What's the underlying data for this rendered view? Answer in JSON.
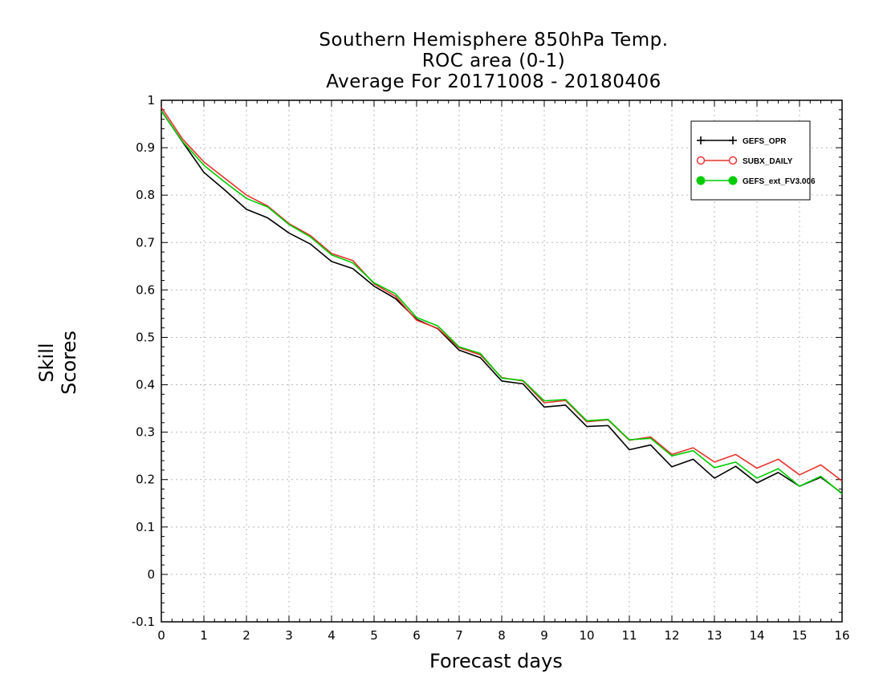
{
  "chart_data": {
    "type": "line",
    "title": [
      "Southern Hemisphere 850hPa Temp.",
      "ROC area (0-1)",
      "Average For 20171008 - 20180406"
    ],
    "xlabel": "Forecast days",
    "ylabel": "Skill Scores",
    "xlim": [
      0,
      16
    ],
    "ylim": [
      -0.1,
      1
    ],
    "x_ticks": [
      "0",
      "1",
      "2",
      "3",
      "4",
      "5",
      "6",
      "7",
      "8",
      "9",
      "10",
      "11",
      "12",
      "13",
      "14",
      "15",
      "16"
    ],
    "y_ticks": [
      "-0.1",
      "0",
      "0.1",
      "0.2",
      "0.3",
      "0.4",
      "0.5",
      "0.6",
      "0.7",
      "0.8",
      "0.9",
      "1"
    ],
    "grid": true,
    "legend_position": "top-right",
    "x": [
      0,
      0.5,
      1,
      1.5,
      2,
      2.5,
      3,
      3.5,
      4,
      4.5,
      5,
      5.5,
      6,
      6.5,
      7,
      7.5,
      8,
      8.5,
      9,
      9.5,
      10,
      10.5,
      11,
      11.5,
      12,
      12.5,
      13,
      13.5,
      14,
      14.5,
      15,
      15.5,
      16
    ],
    "series": [
      {
        "name": "GEFS_OPR",
        "color": "#000000",
        "marker": "plus",
        "values": [
          0.978,
          0.912,
          0.848,
          0.81,
          0.77,
          0.752,
          0.72,
          0.697,
          0.66,
          0.645,
          0.608,
          0.582,
          0.538,
          0.518,
          0.473,
          0.457,
          0.408,
          0.402,
          0.353,
          0.357,
          0.312,
          0.314,
          0.263,
          0.273,
          0.227,
          0.243,
          0.203,
          0.228,
          0.193,
          0.215,
          0.186,
          0.205,
          0.171
        ]
      },
      {
        "name": "SUBX_DAILY",
        "color": "#e8322e",
        "marker": "open-circle",
        "values": [
          0.985,
          0.918,
          0.87,
          0.835,
          0.8,
          0.777,
          0.74,
          0.715,
          0.677,
          0.662,
          0.613,
          0.587,
          0.536,
          0.519,
          0.478,
          0.463,
          0.415,
          0.408,
          0.362,
          0.367,
          0.322,
          0.326,
          0.283,
          0.29,
          0.253,
          0.267,
          0.237,
          0.253,
          0.224,
          0.243,
          0.21,
          0.231,
          0.197
        ]
      },
      {
        "name": "GEFS_ext_FV3.006",
        "color": "#00cc00",
        "marker": "filled-circle",
        "values": [
          0.977,
          0.913,
          0.863,
          0.827,
          0.793,
          0.775,
          0.738,
          0.712,
          0.674,
          0.657,
          0.615,
          0.592,
          0.542,
          0.524,
          0.48,
          0.466,
          0.414,
          0.409,
          0.366,
          0.369,
          0.324,
          0.327,
          0.284,
          0.287,
          0.25,
          0.261,
          0.225,
          0.237,
          0.203,
          0.223,
          0.186,
          0.207,
          0.17
        ]
      }
    ]
  }
}
